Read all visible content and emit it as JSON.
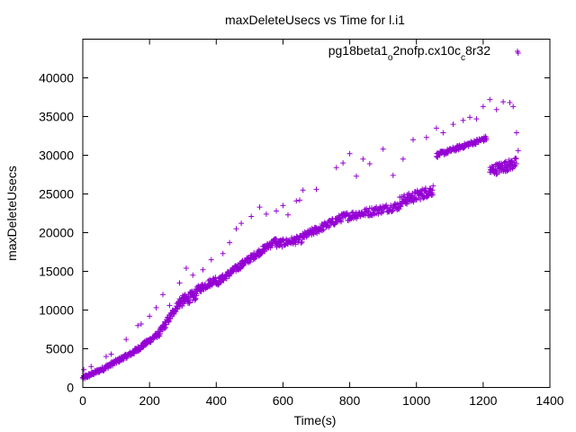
{
  "chart_data": {
    "type": "scatter",
    "title": "maxDeleteUsecs vs Time for l.i1",
    "xlabel": "Time(s)",
    "ylabel": "maxDeleteUsecs",
    "xlim": [
      0,
      1400
    ],
    "ylim": [
      0,
      45000
    ],
    "x_ticks": [
      0,
      200,
      400,
      600,
      800,
      1000,
      1200,
      1400
    ],
    "y_ticks": [
      0,
      5000,
      10000,
      15000,
      20000,
      25000,
      30000,
      35000,
      40000
    ],
    "grid": false,
    "legend_position": "top-right",
    "series_color": "#9400d3",
    "marker": "plus",
    "legend": {
      "parts": [
        {
          "text": "pg18beta1",
          "sub": false
        },
        {
          "text": "o",
          "sub": true
        },
        {
          "text": "2nofp.cx10c",
          "sub": false
        },
        {
          "text": "c",
          "sub": true
        },
        {
          "text": "8r32",
          "sub": false
        }
      ]
    },
    "series": [
      {
        "name": "pg18beta1_o2nofp.cx10c_c8r32",
        "clusters": [
          {
            "x0": 0,
            "x1": 60,
            "y0": 1200,
            "y1": 2400,
            "n": 60,
            "jitter": 250
          },
          {
            "x0": 60,
            "x1": 150,
            "y0": 2400,
            "y1": 4500,
            "n": 80,
            "jitter": 300
          },
          {
            "x0": 150,
            "x1": 230,
            "y0": 4500,
            "y1": 7000,
            "n": 80,
            "jitter": 350
          },
          {
            "x0": 230,
            "x1": 290,
            "y0": 7000,
            "y1": 11000,
            "n": 60,
            "jitter": 500
          },
          {
            "x0": 290,
            "x1": 340,
            "y0": 11000,
            "y1": 12000,
            "n": 60,
            "jitter": 700
          },
          {
            "x0": 340,
            "x1": 400,
            "y0": 12500,
            "y1": 14000,
            "n": 50,
            "jitter": 500
          },
          {
            "x0": 400,
            "x1": 480,
            "y0": 13500,
            "y1": 16000,
            "n": 70,
            "jitter": 450
          },
          {
            "x0": 480,
            "x1": 580,
            "y0": 16000,
            "y1": 19000,
            "n": 80,
            "jitter": 450
          },
          {
            "x0": 580,
            "x1": 660,
            "y0": 18500,
            "y1": 19200,
            "n": 60,
            "jitter": 500
          },
          {
            "x0": 660,
            "x1": 780,
            "y0": 19500,
            "y1": 22000,
            "n": 90,
            "jitter": 500
          },
          {
            "x0": 780,
            "x1": 950,
            "y0": 22000,
            "y1": 23500,
            "n": 110,
            "jitter": 550
          },
          {
            "x0": 950,
            "x1": 1050,
            "y0": 24000,
            "y1": 25500,
            "n": 90,
            "jitter": 700
          },
          {
            "x0": 1060,
            "x1": 1210,
            "y0": 30000,
            "y1": 32200,
            "n": 110,
            "jitter": 300
          },
          {
            "x0": 1220,
            "x1": 1300,
            "y0": 28000,
            "y1": 29000,
            "n": 80,
            "jitter": 700
          }
        ],
        "outliers": [
          [
            3,
            2300
          ],
          [
            25,
            2700
          ],
          [
            70,
            4000
          ],
          [
            85,
            4300
          ],
          [
            130,
            6200
          ],
          [
            165,
            8000
          ],
          [
            175,
            8200
          ],
          [
            200,
            9200
          ],
          [
            220,
            10300
          ],
          [
            240,
            12000
          ],
          [
            260,
            10600
          ],
          [
            290,
            13500
          ],
          [
            310,
            15400
          ],
          [
            330,
            14500
          ],
          [
            360,
            15200
          ],
          [
            385,
            16500
          ],
          [
            420,
            17300
          ],
          [
            440,
            18700
          ],
          [
            460,
            20500
          ],
          [
            475,
            21200
          ],
          [
            505,
            22100
          ],
          [
            530,
            23300
          ],
          [
            550,
            22400
          ],
          [
            580,
            22800
          ],
          [
            600,
            23500
          ],
          [
            615,
            22300
          ],
          [
            640,
            24100
          ],
          [
            650,
            24200
          ],
          [
            660,
            25500
          ],
          [
            700,
            25600
          ],
          [
            760,
            28400
          ],
          [
            780,
            29000
          ],
          [
            800,
            30200
          ],
          [
            820,
            27300
          ],
          [
            840,
            29500
          ],
          [
            860,
            28900
          ],
          [
            900,
            30800
          ],
          [
            930,
            27400
          ],
          [
            960,
            29500
          ],
          [
            990,
            32000
          ],
          [
            1030,
            32300
          ],
          [
            1060,
            33500
          ],
          [
            1080,
            32900
          ],
          [
            1110,
            34000
          ],
          [
            1140,
            34500
          ],
          [
            1160,
            34900
          ],
          [
            1180,
            34700
          ],
          [
            1200,
            36300
          ],
          [
            1220,
            37200
          ],
          [
            1240,
            35900
          ],
          [
            1260,
            36900
          ],
          [
            1280,
            36800
          ],
          [
            1290,
            36300
          ],
          [
            1300,
            32900
          ],
          [
            1305,
            30600
          ],
          [
            1305,
            43200
          ]
        ]
      }
    ]
  }
}
